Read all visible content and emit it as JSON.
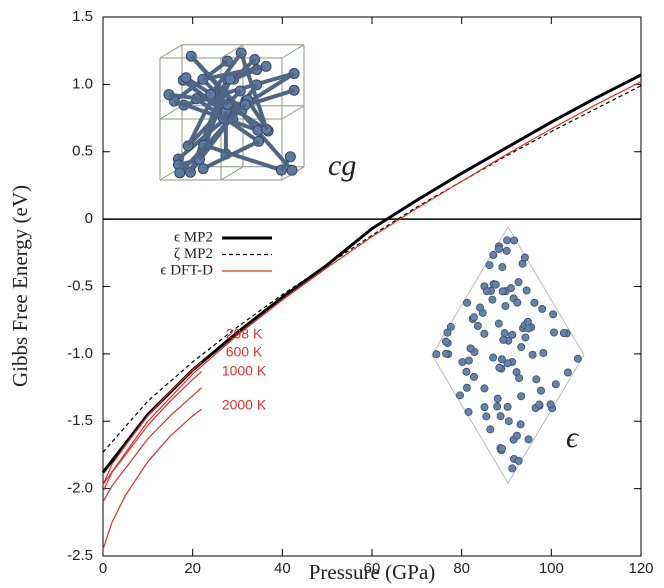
{
  "chart_data": {
    "type": "line",
    "x_label": "Pressure (GPa)",
    "y_label": "Gibbs Free Energy (eV)",
    "xlim": [
      0,
      120
    ],
    "xticks": [
      0,
      20,
      40,
      60,
      80,
      100,
      120
    ],
    "ylim": [
      -2.5,
      1.5
    ],
    "yticks": [
      -2.5,
      {
        "value": -2,
        "label": "-2.0"
      },
      -1.5,
      {
        "value": -1,
        "label": "-1.0"
      },
      -0.5,
      0,
      0.5,
      {
        "value": 1,
        "label": "1.0"
      },
      1.5
    ],
    "zero_line": true,
    "legend": "upper-left",
    "series": [
      {
        "name": "ϵ MP2",
        "color": "#000000",
        "dash": "solid",
        "width": 3,
        "x": [
          0,
          10,
          20,
          30,
          40,
          50,
          60,
          70,
          80,
          90,
          100,
          110,
          120
        ],
        "values": [
          -1.88,
          -1.45,
          -1.12,
          -0.84,
          -0.58,
          -0.34,
          -0.07,
          0.14,
          0.34,
          0.53,
          0.72,
          0.9,
          1.07
        ]
      },
      {
        "name": "ζ MP2",
        "color": "#000000",
        "dash": "dashed",
        "width": 1.2,
        "x": [
          0,
          10,
          20,
          30,
          40,
          50,
          60,
          70,
          80,
          90,
          100,
          110,
          120
        ],
        "values": [
          -1.73,
          -1.35,
          -1.06,
          -0.8,
          -0.56,
          -0.34,
          -0.12,
          0.09,
          0.28,
          0.47,
          0.65,
          0.82,
          0.99
        ]
      },
      {
        "name": "ϵ DFT-D",
        "color": "#e0302e",
        "dash": "solid",
        "width": 1.2,
        "x": [
          0,
          10,
          20,
          30,
          40,
          50,
          60,
          70,
          80,
          90,
          100,
          110,
          120
        ],
        "values": [
          -1.97,
          -1.5,
          -1.15,
          -0.86,
          -0.6,
          -0.36,
          -0.13,
          0.08,
          0.28,
          0.48,
          0.67,
          0.85,
          1.02
        ]
      }
    ],
    "isotherms": [
      {
        "name": "298 K",
        "color": "#e0302e",
        "x": [
          0,
          2,
          5,
          10,
          15,
          20,
          22
        ],
        "values": [
          -1.97,
          -1.82,
          -1.68,
          -1.46,
          -1.28,
          -1.12,
          -1.06
        ]
      },
      {
        "name": "600 K",
        "color": "#e0302e",
        "x": [
          0,
          2,
          5,
          10,
          15,
          20,
          22
        ],
        "values": [
          -2.02,
          -1.88,
          -1.75,
          -1.53,
          -1.35,
          -1.19,
          -1.13
        ]
      },
      {
        "name": "1000 K",
        "color": "#e0302e",
        "x": [
          0,
          2,
          5,
          10,
          15,
          20,
          22
        ],
        "values": [
          -2.1,
          -1.98,
          -1.85,
          -1.63,
          -1.46,
          -1.31,
          -1.25
        ]
      },
      {
        "name": "2000 K",
        "color": "#e0302e",
        "x": [
          0,
          2,
          5,
          10,
          15,
          20,
          22
        ],
        "values": [
          -2.45,
          -2.25,
          -2.05,
          -1.8,
          -1.61,
          -1.46,
          -1.41
        ]
      }
    ],
    "insets": [
      {
        "label": "cg"
      },
      {
        "label": "ϵ"
      }
    ]
  }
}
